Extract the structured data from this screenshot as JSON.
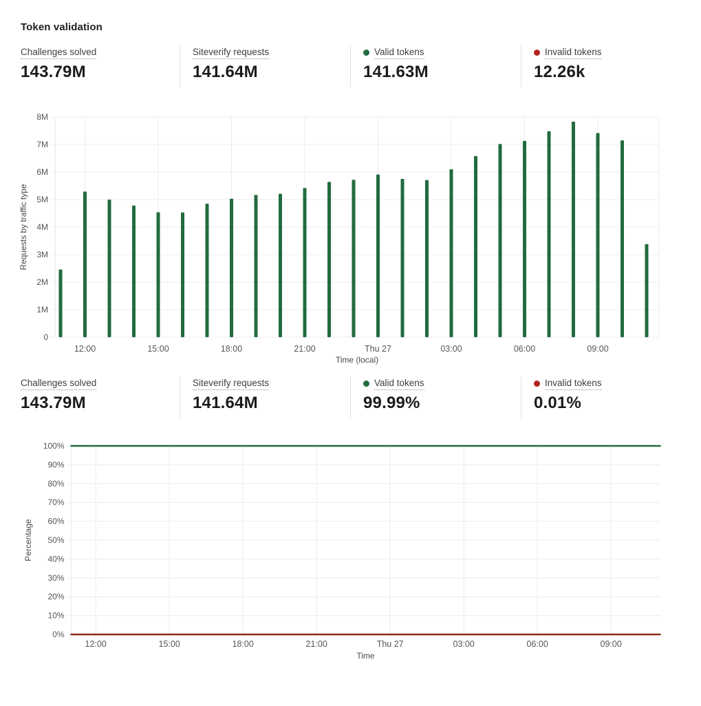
{
  "page": {
    "title": "Token validation"
  },
  "colors": {
    "green": "#226B3F",
    "red_dot": "#B42222",
    "red_line": "#8C2B18",
    "grid": "#ECECEC",
    "axis_edge": "#E3E3E3",
    "tick_text": "#555555",
    "axis_title_text": "#4A4A4A"
  },
  "stats_top": [
    {
      "label": "Challenges solved",
      "value": "143.79M",
      "dot": null
    },
    {
      "label": "Siteverify requests",
      "value": "141.64M",
      "dot": "green"
    },
    {
      "label": "Valid tokens",
      "value": "141.63M",
      "dot": "green"
    },
    {
      "label": "Invalid tokens",
      "value": "12.26k",
      "dot": "red"
    }
  ],
  "stats_bottom": [
    {
      "label": "Challenges solved",
      "value": "143.79M",
      "dot": null
    },
    {
      "label": "Siteverify requests",
      "value": "141.64M",
      "dot": "green"
    },
    {
      "label": "Valid tokens",
      "value": "99.99%",
      "dot": "green"
    },
    {
      "label": "Invalid tokens",
      "value": "0.01%",
      "dot": "red"
    }
  ],
  "chart_data": [
    {
      "id": "requests-by-traffic-type",
      "type": "bar",
      "title": "",
      "ylabel": "Requests by traffic type",
      "xlabel": "Time (local)",
      "unit": "requests (millions)",
      "ylim_millions": [
        0,
        8
      ],
      "ytick_labels": [
        "0",
        "1M",
        "2M",
        "3M",
        "4M",
        "5M",
        "6M",
        "7M",
        "8M"
      ],
      "categories": [
        "11:00",
        "12:00",
        "13:00",
        "14:00",
        "15:00",
        "16:00",
        "17:00",
        "18:00",
        "19:00",
        "20:00",
        "21:00",
        "22:00",
        "23:00",
        "Thu 27",
        "01:00",
        "02:00",
        "03:00",
        "04:00",
        "05:00",
        "06:00",
        "07:00",
        "08:00",
        "09:00",
        "10:00",
        "11:00"
      ],
      "values_millions": [
        2.46,
        5.29,
        5.0,
        4.78,
        4.54,
        4.53,
        4.85,
        5.03,
        5.17,
        5.21,
        5.42,
        5.64,
        5.72,
        5.91,
        5.75,
        5.71,
        6.1,
        6.58,
        7.02,
        7.13,
        7.48,
        7.83,
        7.42,
        7.15,
        3.38
      ],
      "xtick_indices": [
        1,
        4,
        7,
        10,
        13,
        16,
        19,
        22
      ],
      "xtick_labels": [
        "12:00",
        "15:00",
        "18:00",
        "21:00",
        "Thu 27",
        "03:00",
        "06:00",
        "09:00"
      ],
      "series_name": "Requests",
      "bar_color": "#226B3F",
      "grid": true,
      "legend_position": "none"
    },
    {
      "id": "token-validation-percentage",
      "type": "line",
      "title": "",
      "ylabel": "Percentage",
      "xlabel": "Time",
      "ylim": [
        0,
        100
      ],
      "ytick_labels": [
        "0%",
        "10%",
        "20%",
        "30%",
        "40%",
        "50%",
        "60%",
        "70%",
        "80%",
        "90%",
        "100%"
      ],
      "categories": [
        "11:00",
        "12:00",
        "13:00",
        "14:00",
        "15:00",
        "16:00",
        "17:00",
        "18:00",
        "19:00",
        "20:00",
        "21:00",
        "22:00",
        "23:00",
        "Thu 27",
        "01:00",
        "02:00",
        "03:00",
        "04:00",
        "05:00",
        "06:00",
        "07:00",
        "08:00",
        "09:00",
        "10:00",
        "11:00"
      ],
      "xtick_indices": [
        1,
        4,
        7,
        10,
        13,
        16,
        19,
        22
      ],
      "xtick_labels": [
        "12:00",
        "15:00",
        "18:00",
        "21:00",
        "Thu 27",
        "03:00",
        "06:00",
        "09:00"
      ],
      "series": [
        {
          "name": "Valid tokens",
          "color": "#226B3F",
          "values": [
            99.99,
            99.99,
            99.99,
            99.99,
            99.99,
            99.99,
            99.99,
            99.99,
            99.99,
            99.99,
            99.99,
            99.99,
            99.99,
            99.99,
            99.99,
            99.99,
            99.99,
            99.99,
            99.99,
            99.99,
            99.99,
            99.99,
            99.99,
            99.99,
            99.99
          ]
        },
        {
          "name": "Invalid tokens",
          "color": "#8C2B18",
          "values": [
            0.01,
            0.01,
            0.01,
            0.01,
            0.01,
            0.01,
            0.01,
            0.01,
            0.01,
            0.01,
            0.01,
            0.01,
            0.01,
            0.01,
            0.01,
            0.01,
            0.01,
            0.01,
            0.01,
            0.01,
            0.01,
            0.01,
            0.01,
            0.01,
            0.01
          ]
        }
      ],
      "grid": true,
      "legend_position": "none"
    }
  ]
}
